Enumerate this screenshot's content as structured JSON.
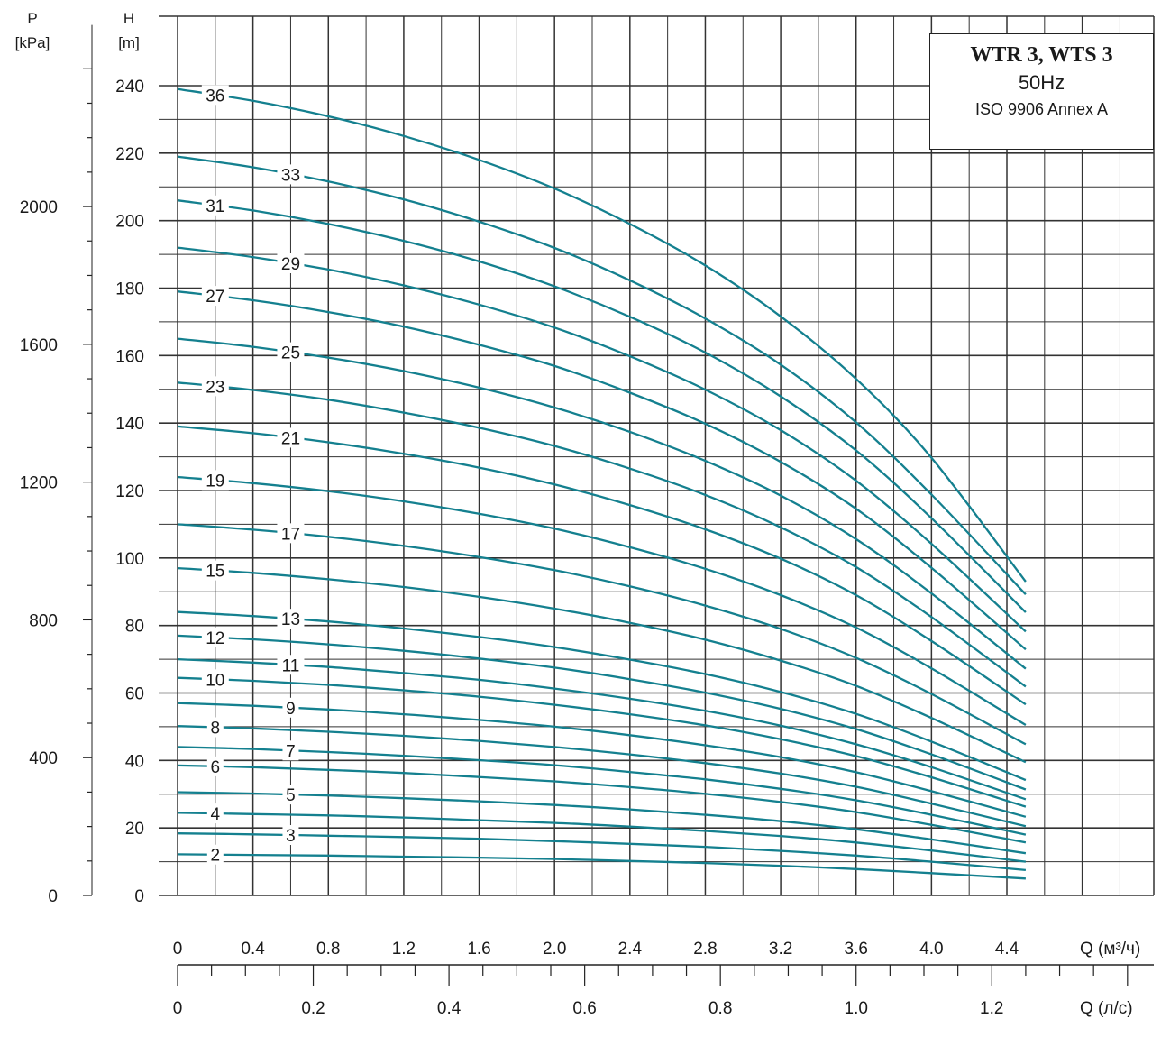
{
  "title_box": {
    "model": "WTR 3, WTS 3",
    "frequency": "50Hz",
    "standard": "ISO 9906 Annex A"
  },
  "chart_data": {
    "type": "line",
    "colors": {
      "curve": "#14808f",
      "grid": "#333333"
    },
    "axes": {
      "p": {
        "label_top": "P",
        "label_bottom": "[kPa]",
        "ticks": [
          "0",
          "400",
          "800",
          "1200",
          "1600",
          "2000"
        ],
        "ylim": [
          0,
          2351
        ]
      },
      "h": {
        "label_top": "H",
        "label_bottom": "[m]",
        "ticks": [
          "0",
          "20",
          "40",
          "60",
          "80",
          "100",
          "120",
          "140",
          "160",
          "180",
          "200",
          "220",
          "240"
        ],
        "ylim": [
          0,
          240
        ]
      },
      "q_m3h": {
        "label": "Q (м³/ч)",
        "ticks": [
          "0",
          "0.4",
          "0.8",
          "1.2",
          "1.6",
          "2.0",
          "2.4",
          "2.8",
          "3.2",
          "3.6",
          "4.0",
          "4.4"
        ],
        "xlim": [
          0,
          5
        ]
      },
      "q_ls": {
        "label": "Q (л/с)",
        "ticks": [
          "0",
          "0.2",
          "0.4",
          "0.6",
          "0.8",
          "1.0",
          "1.2"
        ]
      }
    },
    "grid": true,
    "x": [
      0,
      0.4,
      0.8,
      1.2,
      1.6,
      2.0,
      2.4,
      2.8,
      3.2,
      3.6,
      4.0,
      4.5
    ],
    "series": [
      {
        "label": "2",
        "label_x": 0.2,
        "values": [
          12.2,
          12.0,
          11.8,
          11.5,
          11.2,
          10.8,
          10.2,
          9.6,
          8.8,
          7.8,
          6.6,
          5.0
        ]
      },
      {
        "label": "3",
        "label_x": 0.6,
        "values": [
          18.4,
          18.1,
          17.7,
          17.3,
          16.8,
          16.1,
          15.3,
          14.4,
          13.2,
          11.8,
          10.0,
          7.5
        ]
      },
      {
        "label": "4",
        "label_x": 0.2,
        "values": [
          24.5,
          24.1,
          23.7,
          23.1,
          22.3,
          21.5,
          20.4,
          19.1,
          17.6,
          15.7,
          13.3,
          10.0
        ]
      },
      {
        "label": "5",
        "label_x": 0.6,
        "values": [
          30.6,
          30.2,
          29.6,
          28.8,
          27.9,
          26.8,
          25.5,
          23.9,
          22.0,
          19.6,
          16.6,
          12.5
        ]
      },
      {
        "label": "6",
        "label_x": 0.2,
        "values": [
          38.5,
          38.0,
          37.2,
          36.3,
          35.1,
          33.8,
          32.1,
          30.1,
          27.7,
          24.7,
          20.9,
          15.7
        ]
      },
      {
        "label": "7",
        "label_x": 0.6,
        "values": [
          44.0,
          43.4,
          42.5,
          41.4,
          40.1,
          38.6,
          36.6,
          34.4,
          31.6,
          28.2,
          23.9,
          18.0
        ]
      },
      {
        "label": "8",
        "label_x": 0.2,
        "values": [
          50.2,
          49.5,
          48.5,
          47.3,
          45.8,
          44.0,
          41.8,
          39.2,
          36.1,
          32.2,
          27.2,
          20.5
        ]
      },
      {
        "label": "9",
        "label_x": 0.6,
        "values": [
          57.0,
          56.2,
          55.1,
          53.7,
          52.0,
          50.0,
          47.5,
          44.5,
          41.0,
          36.5,
          30.9,
          23.3
        ]
      },
      {
        "label": "10",
        "label_x": 0.2,
        "values": [
          64.5,
          63.6,
          62.4,
          60.8,
          58.9,
          56.5,
          53.7,
          50.4,
          46.3,
          41.3,
          35.0,
          26.3
        ]
      },
      {
        "label": "11",
        "label_x": 0.6,
        "values": [
          70.0,
          69.0,
          67.7,
          65.9,
          63.9,
          61.3,
          58.3,
          54.7,
          50.3,
          44.8,
          38.0,
          28.5
        ]
      },
      {
        "label": "12",
        "label_x": 0.2,
        "values": [
          77.0,
          75.9,
          74.4,
          72.5,
          70.2,
          67.5,
          64.1,
          60.1,
          55.3,
          49.3,
          41.8,
          31.4
        ]
      },
      {
        "label": "13",
        "label_x": 0.6,
        "values": [
          84.0,
          82.8,
          81.2,
          79.1,
          76.6,
          73.6,
          69.9,
          65.6,
          60.3,
          53.8,
          45.6,
          34.2
        ]
      },
      {
        "label": "15",
        "label_x": 0.2,
        "values": [
          97.0,
          95.6,
          93.7,
          91.4,
          88.5,
          85.0,
          80.8,
          75.8,
          69.6,
          62.1,
          52.6,
          39.5
        ]
      },
      {
        "label": "17",
        "label_x": 0.6,
        "values": [
          110.0,
          108.4,
          106.3,
          103.6,
          100.3,
          96.4,
          91.6,
          85.9,
          79.0,
          70.4,
          59.7,
          44.8
        ]
      },
      {
        "label": "19",
        "label_x": 0.2,
        "values": [
          124.0,
          122.2,
          119.8,
          116.8,
          113.1,
          108.7,
          103.2,
          96.8,
          89.0,
          79.4,
          67.3,
          50.5
        ]
      },
      {
        "label": "21",
        "label_x": 0.6,
        "values": [
          139.0,
          137.0,
          134.3,
          130.9,
          126.8,
          121.8,
          115.7,
          108.5,
          99.8,
          89.0,
          75.4,
          56.6
        ]
      },
      {
        "label": "23",
        "label_x": 0.2,
        "values": [
          152.0,
          149.8,
          146.9,
          143.1,
          138.6,
          133.2,
          126.5,
          118.7,
          109.1,
          97.3,
          82.5,
          61.9
        ]
      },
      {
        "label": "25",
        "label_x": 0.6,
        "values": [
          165.0,
          162.6,
          159.4,
          155.4,
          150.5,
          144.6,
          137.4,
          128.8,
          118.5,
          105.6,
          89.5,
          67.2
        ]
      },
      {
        "label": "27",
        "label_x": 0.2,
        "values": [
          179.0,
          176.4,
          172.9,
          168.6,
          163.2,
          156.9,
          149.0,
          139.8,
          128.5,
          114.6,
          97.1,
          72.9
        ]
      },
      {
        "label": "29",
        "label_x": 0.6,
        "values": [
          192.0,
          189.2,
          185.5,
          180.8,
          175.1,
          168.3,
          159.8,
          149.9,
          137.9,
          122.9,
          104.2,
          78.2
        ]
      },
      {
        "label": "31",
        "label_x": 0.2,
        "values": [
          206.0,
          203.0,
          199.0,
          194.0,
          187.9,
          180.5,
          171.5,
          160.9,
          147.9,
          131.9,
          111.8,
          83.9
        ]
      },
      {
        "label": "33",
        "label_x": 0.6,
        "values": [
          219.0,
          215.8,
          211.6,
          206.3,
          199.7,
          191.9,
          182.3,
          171.0,
          157.3,
          140.2,
          118.8,
          89.2
        ]
      },
      {
        "label": "36",
        "label_x": 0.2,
        "values": [
          239.0,
          235.5,
          230.9,
          225.1,
          218.0,
          209.5,
          199.0,
          186.7,
          171.6,
          153.1,
          129.7,
          93.0
        ]
      }
    ]
  }
}
